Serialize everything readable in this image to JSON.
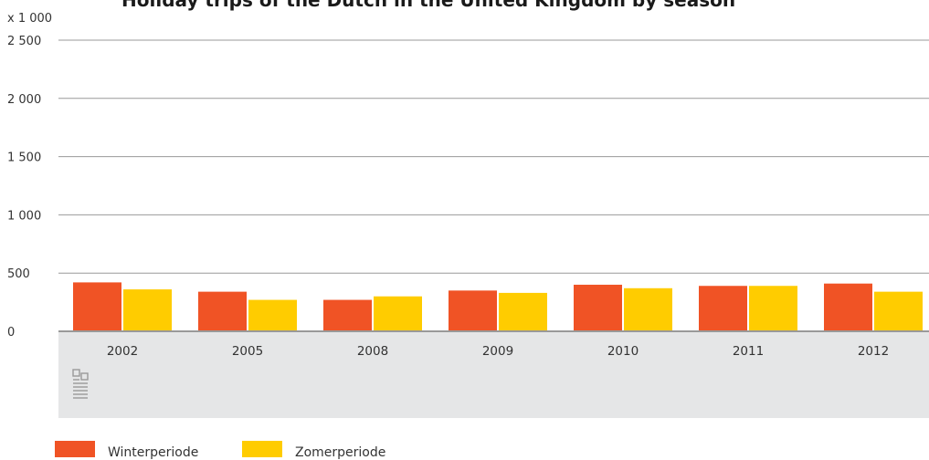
{
  "chart_data": {
    "type": "bar",
    "title": "Holiday trips of the Dutch in the United Kingdom by season",
    "unit_label": "x 1 000",
    "categories": [
      "2002",
      "2005",
      "2008",
      "2009",
      "2010",
      "2011",
      "2012"
    ],
    "series": [
      {
        "name": "Winterperiode",
        "color": "#f05325",
        "values": [
          420,
          340,
          270,
          350,
          400,
          390,
          410
        ]
      },
      {
        "name": "Zomerperiode",
        "color": "#ffcc00",
        "values": [
          360,
          270,
          300,
          330,
          370,
          390,
          340
        ]
      }
    ],
    "ylim": [
      0,
      2500
    ],
    "yticks": [
      0,
      500,
      1000,
      1500,
      2000,
      2500
    ],
    "ytick_labels": [
      "0",
      "500",
      "1 000",
      "1 500",
      "2 000",
      "2 500"
    ],
    "grid": true,
    "legend_position": "bottom-left",
    "logo_icon": "cbs-logo-icon",
    "colors": {
      "grid": "#999999",
      "axis": "#999999",
      "category_band": "#e5e6e7",
      "logo": "#9a9a9a"
    }
  }
}
